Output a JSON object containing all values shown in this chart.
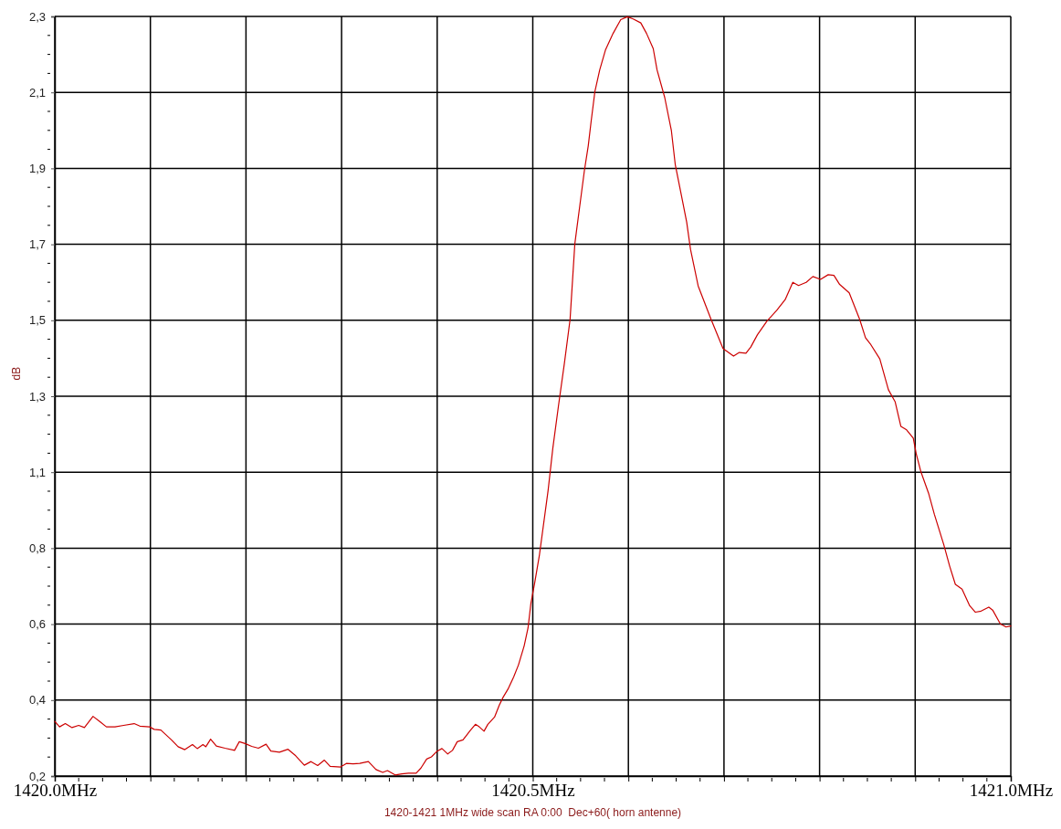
{
  "chart_data": {
    "type": "line",
    "xlabel": "1420-1421 1MHz wide scan RA 0:00  Dec+60( horn antenne)",
    "ylabel": "dB",
    "x": [
      1420.0,
      1420.005,
      1420.011,
      1420.018,
      1420.025,
      1420.031,
      1420.04,
      1420.047,
      1420.054,
      1420.063,
      1420.072,
      1420.083,
      1420.089,
      1420.099,
      1420.104,
      1420.111,
      1420.122,
      1420.129,
      1420.136,
      1420.144,
      1420.149,
      1420.155,
      1420.158,
      1420.163,
      1420.169,
      1420.178,
      1420.188,
      1420.193,
      1420.199,
      1420.206,
      1420.213,
      1420.221,
      1420.226,
      1420.235,
      1420.244,
      1420.252,
      1420.261,
      1420.268,
      1420.275,
      1420.282,
      1420.288,
      1420.299,
      1420.305,
      1420.312,
      1420.319,
      1420.328,
      1420.336,
      1420.343,
      1420.348,
      1420.356,
      1420.363,
      1420.37,
      1420.378,
      1420.383,
      1420.389,
      1420.394,
      1420.4,
      1420.405,
      1420.411,
      1420.416,
      1420.421,
      1420.427,
      1420.434,
      1420.44,
      1420.444,
      1420.449,
      1420.453,
      1420.46,
      1420.465,
      1420.469,
      1420.474,
      1420.48,
      1420.485,
      1420.491,
      1420.495,
      1420.498,
      1420.502,
      1420.507,
      1420.516,
      1420.521,
      1420.527,
      1420.533,
      1420.539,
      1420.544,
      1420.549,
      1420.554,
      1420.558,
      1420.561,
      1420.565,
      1420.57,
      1420.576,
      1420.584,
      1420.592,
      1420.599,
      1420.605,
      1420.613,
      1420.619,
      1420.626,
      1420.63,
      1420.638,
      1420.645,
      1420.649,
      1420.656,
      1420.661,
      1420.665,
      1420.673,
      1420.686,
      1420.699,
      1420.71,
      1420.716,
      1420.723,
      1420.728,
      1420.735,
      1420.745,
      1420.755,
      1420.764,
      1420.772,
      1420.778,
      1420.786,
      1420.793,
      1420.801,
      1420.809,
      1420.815,
      1420.821,
      1420.831,
      1420.842,
      1420.848,
      1420.853,
      1420.863,
      1420.872,
      1420.879,
      1420.885,
      1420.891,
      1420.898,
      1420.901,
      1420.906,
      1420.914,
      1420.92,
      1420.93,
      1420.936,
      1420.942,
      1420.949,
      1420.957,
      1420.963,
      1420.969,
      1420.977,
      1420.981,
      1420.989,
      1420.995,
      1421.0
    ],
    "values": [
      0.361,
      0.346,
      0.355,
      0.344,
      0.35,
      0.344,
      0.375,
      0.361,
      0.346,
      0.346,
      0.35,
      0.355,
      0.348,
      0.346,
      0.339,
      0.337,
      0.31,
      0.291,
      0.283,
      0.297,
      0.286,
      0.297,
      0.291,
      0.312,
      0.293,
      0.287,
      0.281,
      0.305,
      0.3,
      0.292,
      0.287,
      0.298,
      0.279,
      0.276,
      0.284,
      0.266,
      0.24,
      0.25,
      0.239,
      0.254,
      0.237,
      0.235,
      0.245,
      0.244,
      0.245,
      0.25,
      0.228,
      0.22,
      0.225,
      0.213,
      0.216,
      0.218,
      0.218,
      0.232,
      0.257,
      0.263,
      0.279,
      0.286,
      0.271,
      0.281,
      0.305,
      0.31,
      0.334,
      0.353,
      0.346,
      0.334,
      0.353,
      0.373,
      0.406,
      0.428,
      0.45,
      0.484,
      0.517,
      0.57,
      0.619,
      0.687,
      0.744,
      0.822,
      0.999,
      1.117,
      1.236,
      1.35,
      1.472,
      1.682,
      1.783,
      1.884,
      1.952,
      2.019,
      2.103,
      2.162,
      2.217,
      2.263,
      2.301,
      2.309,
      2.303,
      2.292,
      2.263,
      2.221,
      2.162,
      2.086,
      1.994,
      1.901,
      1.808,
      1.741,
      1.666,
      1.565,
      1.476,
      1.392,
      1.371,
      1.381,
      1.379,
      1.396,
      1.43,
      1.468,
      1.497,
      1.527,
      1.575,
      1.566,
      1.575,
      1.591,
      1.583,
      1.596,
      1.594,
      1.569,
      1.546,
      1.472,
      1.422,
      1.405,
      1.363,
      1.278,
      1.245,
      1.177,
      1.167,
      1.144,
      1.102,
      1.051,
      0.992,
      0.934,
      0.849,
      0.791,
      0.74,
      0.727,
      0.681,
      0.663,
      0.666,
      0.677,
      0.669,
      0.631,
      0.622,
      0.625
    ],
    "color": "#cc0000",
    "xlim": [
      1420.0,
      1421.0
    ],
    "xticks": [
      {
        "value": 1420.0,
        "label": "1420.0MHz"
      },
      {
        "value": 1420.1,
        "label": null
      },
      {
        "value": 1420.2,
        "label": null
      },
      {
        "value": 1420.3,
        "label": null
      },
      {
        "value": 1420.4,
        "label": null
      },
      {
        "value": 1420.5,
        "label": "1420.5MHz"
      },
      {
        "value": 1420.6,
        "label": null
      },
      {
        "value": 1420.7,
        "label": null
      },
      {
        "value": 1420.8,
        "label": null
      },
      {
        "value": 1420.9,
        "label": null
      },
      {
        "value": 1421.0,
        "label": "1421.0MHz"
      }
    ],
    "ylim": [
      0.21,
      2.31
    ],
    "yticks": [
      {
        "value": 0.21,
        "label": "0,2"
      },
      {
        "value": 0.42,
        "label": "0,4"
      },
      {
        "value": 0.63,
        "label": "0,6"
      },
      {
        "value": 0.84,
        "label": "0,8"
      },
      {
        "value": 1.05,
        "label": "1,1"
      },
      {
        "value": 1.26,
        "label": "1,3"
      },
      {
        "value": 1.47,
        "label": "1,5"
      },
      {
        "value": 1.68,
        "label": "1,7"
      },
      {
        "value": 1.89,
        "label": "1,9"
      },
      {
        "value": 2.1,
        "label": "2,1"
      },
      {
        "value": 2.31,
        "label": "2,3"
      }
    ],
    "grid": true
  }
}
